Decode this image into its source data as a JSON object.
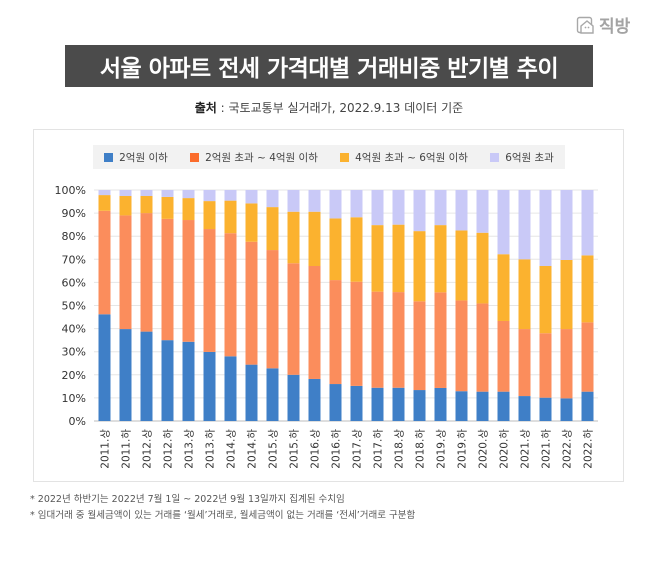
{
  "brand": {
    "logo_icon": "house-icon",
    "name": "직방"
  },
  "header": {
    "title": "서울 아파트 전세 가격대별 거래비중 반기별 추이",
    "source_label": "출처",
    "source_text": " : 국토교통부 실거래가, 2022.9.13 데이터 기준"
  },
  "chart_data": {
    "type": "bar",
    "stacked": true,
    "normalized": true,
    "title": "서울 아파트 전세 가격대별 거래비중 반기별 추이",
    "xlabel": "",
    "ylabel": "",
    "ylim": [
      0,
      100
    ],
    "yticks": [
      "0%",
      "10%",
      "20%",
      "30%",
      "40%",
      "50%",
      "60%",
      "70%",
      "80%",
      "90%",
      "100%"
    ],
    "grid": true,
    "legend_position": "top",
    "categories": [
      "2011.상",
      "2011.하",
      "2012.상",
      "2012.하",
      "2013.상",
      "2013.하",
      "2014.상",
      "2014.하",
      "2015.상",
      "2015.하",
      "2016.상",
      "2016.하",
      "2017.상",
      "2017.하",
      "2018.상",
      "2018.하",
      "2019.상",
      "2019.하",
      "2020.상",
      "2020.하",
      "2021.상",
      "2021.하",
      "2022.상",
      "2022.하"
    ],
    "series": [
      {
        "name": "2억원 이하",
        "color": "#3f7fc7",
        "values": [
          46.2,
          39.8,
          38.7,
          35.0,
          34.3,
          29.9,
          28.0,
          24.4,
          22.8,
          20.0,
          18.2,
          16.0,
          15.2,
          14.4,
          14.4,
          13.4,
          14.3,
          12.9,
          12.7,
          12.7,
          10.8,
          10.1,
          9.8,
          12.7
        ]
      },
      {
        "name": "2억원 초과 ~ 4억원 이하",
        "color": "#fb8d5c",
        "values": [
          44.8,
          49.2,
          51.3,
          52.5,
          52.7,
          53.2,
          53.3,
          53.2,
          51.2,
          48.3,
          48.9,
          45.0,
          45.1,
          41.6,
          41.4,
          38.4,
          41.4,
          39.3,
          38.2,
          30.6,
          29.0,
          27.9,
          30.0,
          30.0
        ]
      },
      {
        "name": "4억원 초과 ~ 6억원 이하",
        "color": "#fbb22f",
        "values": [
          6.8,
          8.4,
          7.4,
          9.5,
          9.5,
          12.1,
          14.1,
          16.6,
          18.6,
          22.3,
          23.5,
          26.7,
          27.9,
          28.8,
          29.2,
          30.4,
          29.1,
          30.3,
          30.6,
          28.9,
          30.2,
          29.1,
          29.9,
          29.0
        ]
      },
      {
        "name": "6억원 초과",
        "color": "#c9c9f7",
        "values": [
          2.2,
          2.6,
          2.6,
          3.0,
          3.5,
          4.8,
          4.6,
          5.8,
          7.4,
          9.4,
          9.4,
          12.3,
          11.8,
          15.2,
          15.0,
          17.8,
          15.2,
          17.5,
          18.5,
          27.8,
          30.0,
          32.9,
          30.3,
          28.3
        ]
      }
    ]
  },
  "footnotes": [
    "* 2022년 하반기는 2022년 7월 1일 ~ 2022년 9월 13일까지 집계된 수치임",
    "* 임대거래 중 월세금액이 있는 거래를 ‘월세’거래로, 월세금액이 없는 거래를 ‘전세’거래로 구분함"
  ]
}
